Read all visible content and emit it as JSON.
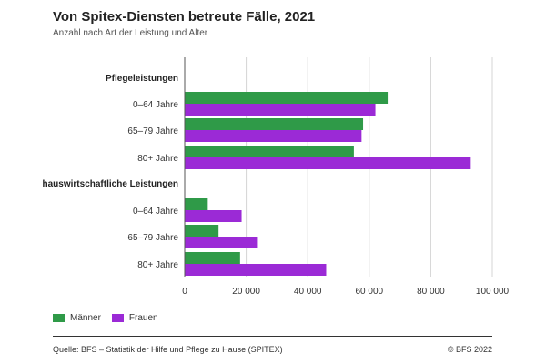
{
  "header": {
    "title": "Von Spitex-Diensten betreute Fälle, 2021",
    "subtitle": "Anzahl nach Art der Leistung und Alter"
  },
  "legend": {
    "men_label": "Männer",
    "women_label": "Frauen"
  },
  "footer": {
    "source": "Quelle: BFS – Statistik der Hilfe und Pflege zu Hause (SPITEX)",
    "copyright": "© BFS 2022"
  },
  "colors": {
    "men": "#2f9a48",
    "women": "#9b2ad6",
    "grid": "#d4d4d4",
    "axis": "#555555"
  },
  "chart_data": {
    "type": "bar",
    "orientation": "horizontal",
    "title": "Von Spitex-Diensten betreute Fälle, 2021",
    "subtitle": "Anzahl nach Art der Leistung und Alter",
    "xlim": [
      0,
      100000
    ],
    "x_ticks": [
      0,
      20000,
      40000,
      60000,
      80000,
      100000
    ],
    "x_tick_labels": [
      "0",
      "20 000",
      "40 000",
      "60 000",
      "80 000",
      "100 000"
    ],
    "grid": true,
    "legend_position": "bottom-left",
    "groups": [
      {
        "label": "Pflegeleistungen",
        "categories": [
          "0–64 Jahre",
          "65–79 Jahre",
          "80+ Jahre"
        ],
        "series": [
          {
            "name": "Männer",
            "values": [
              66000,
              58000,
              55000
            ]
          },
          {
            "name": "Frauen",
            "values": [
              62000,
              57500,
              93000
            ]
          }
        ]
      },
      {
        "label": "hauswirtschaftliche Leistungen",
        "categories": [
          "0–64 Jahre",
          "65–79 Jahre",
          "80+ Jahre"
        ],
        "series": [
          {
            "name": "Männer",
            "values": [
              7500,
              11000,
              18000
            ]
          },
          {
            "name": "Frauen",
            "values": [
              18500,
              23500,
              46000
            ]
          }
        ]
      }
    ]
  }
}
